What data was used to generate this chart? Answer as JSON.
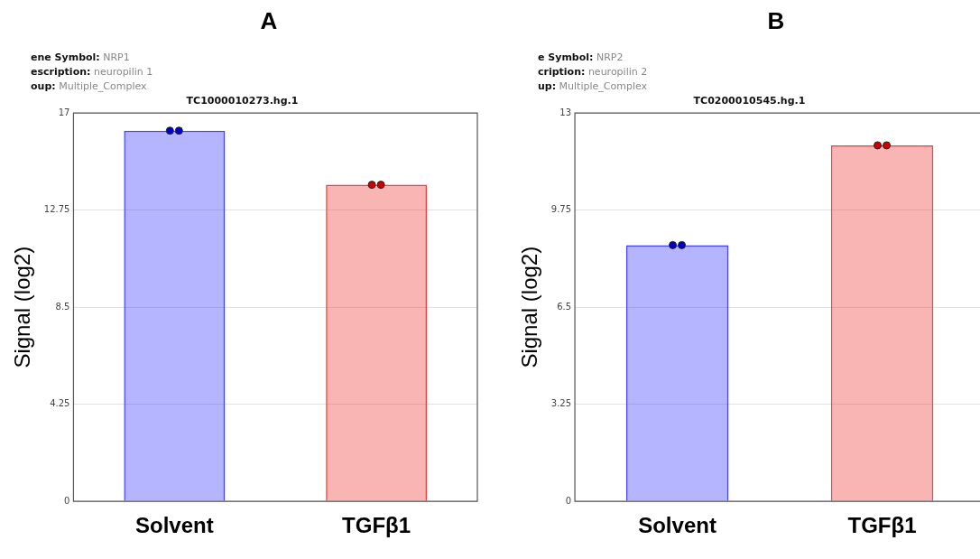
{
  "chart_data": [
    {
      "type": "bar",
      "title": "A",
      "subtitle": "TC1000010273.hg.1",
      "ylabel": "Signal (log2)",
      "annotations": [
        "ene Symbol: NRP1",
        "escription: neuropilin 1",
        "oup: Multiple_Complex"
      ],
      "categories": [
        "Solvent",
        "TGFβ1"
      ],
      "series": [
        {
          "colors": [
            "#4444ff",
            "#f04444"
          ],
          "values": [
            16.23,
            13.86
          ]
        },
        {
          "type": "scatter",
          "x": [
            "Solvent",
            "Solvent",
            "TGFβ1",
            "TGFβ1"
          ],
          "colors": [
            "#0000cc",
            "#0000cc",
            "#cc0000",
            "#cc0000"
          ],
          "values": [
            16.23,
            16.23,
            13.86,
            13.86
          ]
        }
      ],
      "marker": "circle",
      "ylim": [
        0,
        17
      ],
      "yticks": [
        0,
        4.25,
        8.5,
        12.75,
        17
      ],
      "grid": "y",
      "legend": false
    },
    {
      "type": "bar",
      "title": "B",
      "subtitle": "TC0200010545.hg.1",
      "ylabel": "Signal (log2)",
      "annotations": [
        "e Symbol: NRP2",
        "cription: neuropilin 2",
        "up: Multiple_Complex"
      ],
      "categories": [
        "Solvent",
        "TGFβ1"
      ],
      "series": [
        {
          "colors": [
            "#4444ff",
            "#f04444"
          ],
          "values": [
            8.58,
            11.92
          ]
        },
        {
          "type": "scatter",
          "x": [
            "Solvent",
            "Solvent",
            "TGFβ1",
            "TGFβ1"
          ],
          "colors": [
            "#0000cc",
            "#0000cc",
            "#cc0000",
            "#cc0000"
          ],
          "values": [
            8.58,
            8.58,
            11.92,
            11.92
          ]
        }
      ],
      "marker": "circle",
      "ylim": [
        0,
        13
      ],
      "yticks": [
        0,
        3.25,
        6.5,
        9.75,
        13
      ],
      "grid": "y",
      "legend": false
    }
  ]
}
